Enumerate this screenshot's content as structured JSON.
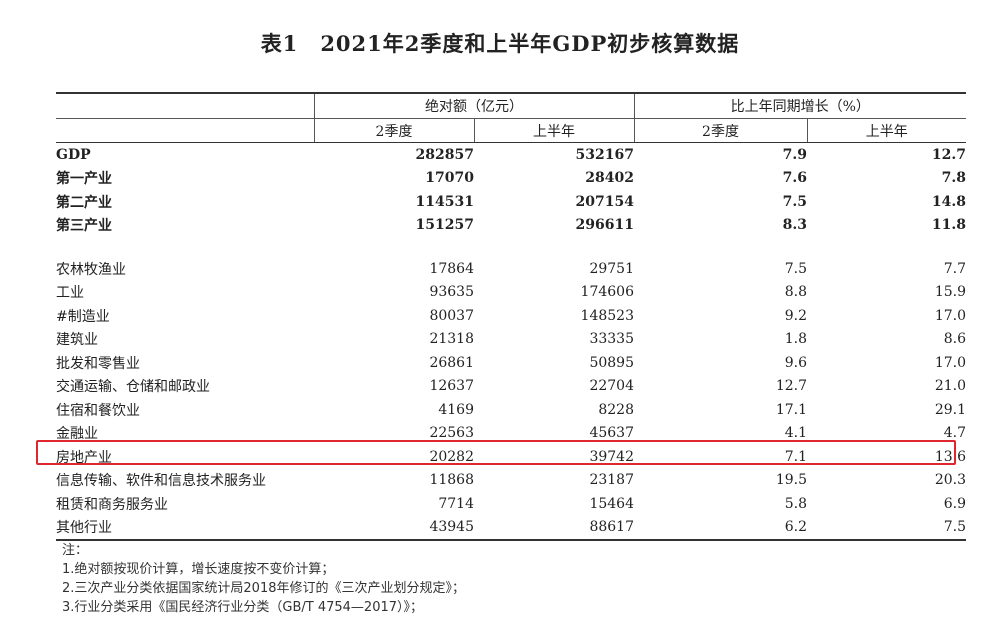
{
  "title": {
    "label": "表1",
    "text": "2021年2季度和上半年GDP初步核算数据"
  },
  "headers": {
    "group_abs": "绝对额（亿元）",
    "group_growth": "比上年同期增长（%）",
    "sub": [
      "2季度",
      "上半年",
      "2季度",
      "上半年"
    ]
  },
  "rows_bold": [
    {
      "name": "GDP",
      "v": [
        "282857",
        "532167",
        "7.9",
        "12.7"
      ]
    },
    {
      "name": "第一产业",
      "v": [
        "17070",
        "28402",
        "7.6",
        "7.8"
      ]
    },
    {
      "name": "第二产业",
      "v": [
        "114531",
        "207154",
        "7.5",
        "14.8"
      ]
    },
    {
      "name": "第三产业",
      "v": [
        "151257",
        "296611",
        "8.3",
        "11.8"
      ]
    }
  ],
  "rows": [
    {
      "name": "农林牧渔业",
      "v": [
        "17864",
        "29751",
        "7.5",
        "7.7"
      ]
    },
    {
      "name": "工业",
      "v": [
        "93635",
        "174606",
        "8.8",
        "15.9"
      ]
    },
    {
      "name": "#制造业",
      "v": [
        "80037",
        "148523",
        "9.2",
        "17.0"
      ]
    },
    {
      "name": "建筑业",
      "v": [
        "21318",
        "33335",
        "1.8",
        "8.6"
      ]
    },
    {
      "name": "批发和零售业",
      "v": [
        "26861",
        "50895",
        "9.6",
        "17.0"
      ]
    },
    {
      "name": "交通运输、仓储和邮政业",
      "v": [
        "12637",
        "22704",
        "12.7",
        "21.0"
      ]
    },
    {
      "name": "住宿和餐饮业",
      "v": [
        "4169",
        "8228",
        "17.1",
        "29.1"
      ]
    },
    {
      "name": "金融业",
      "v": [
        "22563",
        "45637",
        "4.1",
        "4.7"
      ]
    },
    {
      "name": "房地产业",
      "v": [
        "20282",
        "39742",
        "7.1",
        "13.6"
      ]
    },
    {
      "name": "信息传输、软件和信息技术服务业",
      "v": [
        "11868",
        "23187",
        "19.5",
        "20.3"
      ]
    },
    {
      "name": "租赁和商务服务业",
      "v": [
        "7714",
        "15464",
        "5.8",
        "6.9"
      ]
    },
    {
      "name": "其他行业",
      "v": [
        "43945",
        "88617",
        "6.2",
        "7.5"
      ]
    }
  ],
  "notes": {
    "head": "注：",
    "items": [
      "1.绝对额按现价计算，增长速度按不变价计算；",
      "2.三次产业分类依据国家统计局2018年修订的《三次产业划分规定》；",
      "3.行业分类采用《国民经济行业分类（GB/T 4754—2017）》；"
    ]
  },
  "colors": {
    "highlight": "#e0262f"
  }
}
